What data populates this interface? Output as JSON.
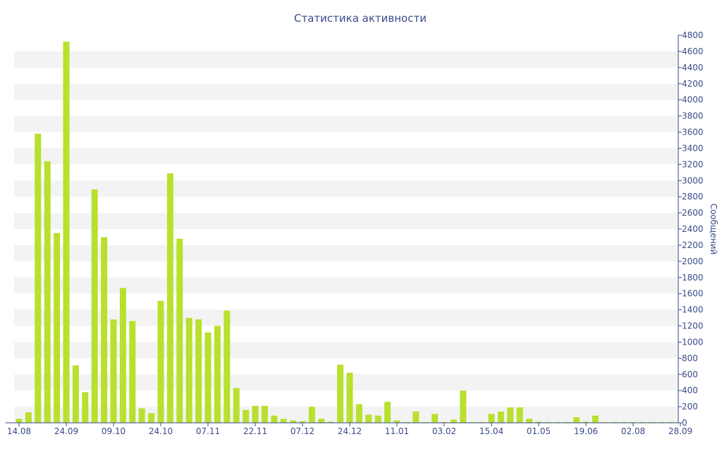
{
  "chart_data": {
    "type": "bar",
    "title": "Статистика активности",
    "ylabel": "Сообщений",
    "xlabel": "",
    "ylim": [
      0,
      4800
    ],
    "y_ticks": [
      0,
      200,
      400,
      600,
      800,
      1000,
      1200,
      1400,
      1600,
      1800,
      2000,
      2200,
      2400,
      2600,
      2800,
      3000,
      3200,
      3400,
      3600,
      3800,
      4000,
      4200,
      4400,
      4600,
      4800
    ],
    "x_tick_labels": [
      "14.08",
      "24.09",
      "09.10",
      "24.10",
      "07.11",
      "22.11",
      "07.12",
      "24.12",
      "11.01",
      "03.02",
      "15.04",
      "01.05",
      "19.06",
      "02.08",
      "28.09"
    ],
    "x_tick_bar_index": [
      0,
      5,
      10,
      15,
      20,
      25,
      30,
      35,
      40,
      45,
      50,
      55,
      60,
      65,
      70
    ],
    "bar_color": "#b8e02e",
    "stripe_color": "#f3f3f3",
    "axis_color": "#3a4a8a",
    "values": [
      50,
      130,
      3580,
      3240,
      2350,
      4720,
      710,
      380,
      2890,
      2300,
      1280,
      1670,
      1260,
      180,
      120,
      1510,
      3090,
      2280,
      1300,
      1280,
      1120,
      1200,
      1390,
      430,
      160,
      210,
      210,
      90,
      50,
      30,
      20,
      200,
      50,
      15,
      720,
      620,
      230,
      100,
      90,
      260,
      30,
      10,
      140,
      10,
      110,
      10,
      40,
      400,
      10,
      10,
      110,
      140,
      190,
      190,
      50,
      15,
      10,
      10,
      10,
      70,
      15,
      90,
      10,
      10,
      10,
      10,
      10,
      10,
      10,
      10
    ]
  }
}
